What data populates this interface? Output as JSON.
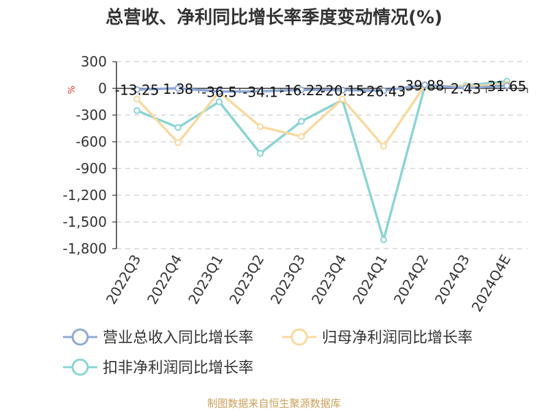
{
  "chart_data": {
    "type": "line",
    "title": "总营收、净利同比增长率季度变动情况(%)",
    "ylabel": "%",
    "categories": [
      "2022Q3",
      "2022Q4",
      "2023Q1",
      "2023Q2",
      "2023Q3",
      "2023Q4",
      "2024Q1",
      "2024Q2",
      "2024Q3",
      "2024Q4E"
    ],
    "ylim": [
      -1800,
      300
    ],
    "yticks": [
      300,
      0,
      -300,
      -600,
      -900,
      -1200,
      -1500,
      -1800
    ],
    "ytick_labels": [
      "300",
      "0",
      "-300",
      "-600",
      "-900",
      "-1,200",
      "-1,500",
      "-1,800"
    ],
    "grid": true,
    "legend_position": "bottom",
    "series": [
      {
        "name": "营业总收入同比增长率",
        "color": "#8fa9d6",
        "values": [
          -13.25,
          1.38,
          -36.5,
          -34.1,
          -16.22,
          -20.15,
          -26.43,
          39.88,
          2.43,
          31.65
        ],
        "labels": [
          "-13.25",
          "1.38",
          "-36.5",
          "-34.1",
          "-16.22",
          "-20.15",
          "-26.43",
          "39.88",
          "2.43",
          "31.65"
        ]
      },
      {
        "name": "归母净利润同比增长率",
        "color": "#f8d9a0",
        "values": [
          -120,
          -610,
          -40,
          -430,
          -540,
          -120,
          -650,
          30,
          20,
          50
        ]
      },
      {
        "name": "扣非净利润同比增长率",
        "color": "#8ad4d6",
        "values": [
          -250,
          -440,
          -150,
          -730,
          -370,
          -130,
          -1700,
          20,
          30,
          80
        ]
      }
    ]
  },
  "footer": {
    "source": "制图数据来自恒生聚源数据库"
  }
}
